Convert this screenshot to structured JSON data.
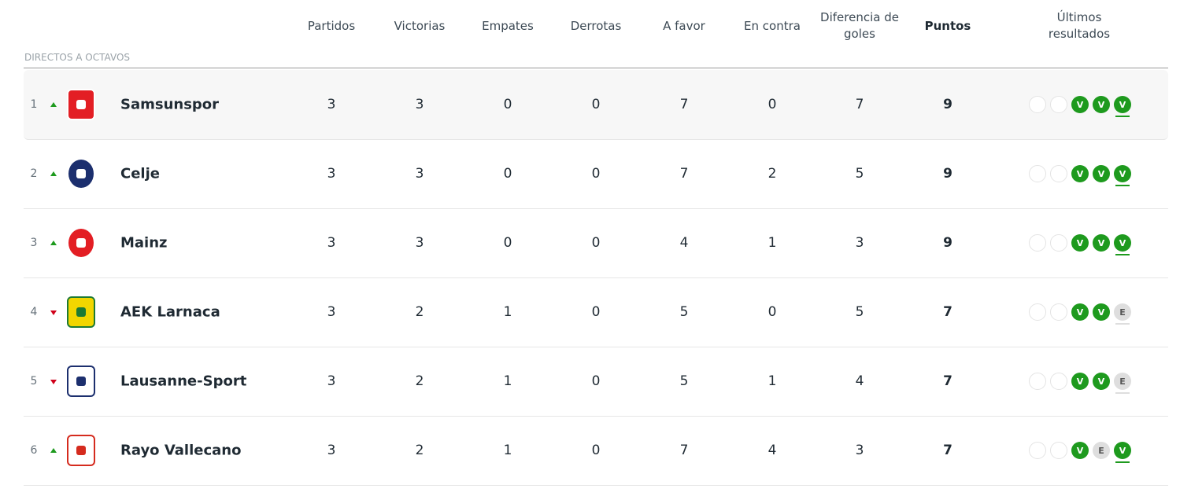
{
  "header": {
    "columns": [
      "Partidos",
      "Victorias",
      "Empates",
      "Derrotas",
      "A favor",
      "En contra",
      "Diferencia de goles",
      "Puntos",
      "Últimos resultados"
    ]
  },
  "section": "DIRECTOS A OCTAVOS",
  "table": {
    "rows": [
      {
        "position": 1,
        "trend": "up",
        "team": "Samsunspor",
        "stats": [
          3,
          3,
          0,
          0,
          7,
          0,
          7,
          9
        ],
        "results": [
          null,
          null,
          {
            "label": "V",
            "color": "#1e9a1e"
          },
          {
            "label": "V",
            "color": "#1e9a1e"
          },
          {
            "label": "V",
            "color": "#1e9a1e"
          }
        ]
      },
      {
        "position": 2,
        "trend": "up",
        "team": "Celje",
        "stats": [
          3,
          3,
          0,
          0,
          7,
          2,
          5,
          9
        ],
        "results": [
          null,
          null,
          {
            "label": "V",
            "color": "#1e9a1e"
          },
          {
            "label": "V",
            "color": "#1e9a1e"
          },
          {
            "label": "V",
            "color": "#1e9a1e"
          }
        ]
      },
      {
        "position": 3,
        "trend": "up",
        "team": "Mainz",
        "stats": [
          3,
          3,
          0,
          0,
          4,
          1,
          3,
          9
        ],
        "results": [
          null,
          null,
          {
            "label": "V",
            "color": "#1e9a1e"
          },
          {
            "label": "V",
            "color": "#1e9a1e"
          },
          {
            "label": "V",
            "color": "#1e9a1e"
          }
        ]
      },
      {
        "position": 4,
        "trend": "down",
        "team": "AEK Larnaca",
        "stats": [
          3,
          2,
          1,
          0,
          5,
          0,
          5,
          7
        ],
        "results": [
          null,
          null,
          {
            "label": "V",
            "color": "#1e9a1e"
          },
          {
            "label": "V",
            "color": "#1e9a1e"
          },
          {
            "label": "E",
            "color": "#dedede"
          }
        ]
      },
      {
        "position": 5,
        "trend": "down",
        "team": "Lausanne-Sport",
        "stats": [
          3,
          2,
          1,
          0,
          5,
          1,
          4,
          7
        ],
        "results": [
          null,
          null,
          {
            "label": "V",
            "color": "#1e9a1e"
          },
          {
            "label": "V",
            "color": "#1e9a1e"
          },
          {
            "label": "E",
            "color": "#dedede"
          }
        ]
      },
      {
        "position": 6,
        "trend": "up",
        "team": "Rayo Vallecano",
        "stats": [
          3,
          2,
          1,
          0,
          7,
          4,
          3,
          7
        ],
        "results": [
          null,
          null,
          {
            "label": "V",
            "color": "#1e9a1e"
          },
          {
            "label": "E",
            "color": "#dedede"
          },
          {
            "label": "V",
            "color": "#1e9a1e"
          }
        ]
      }
    ]
  }
}
